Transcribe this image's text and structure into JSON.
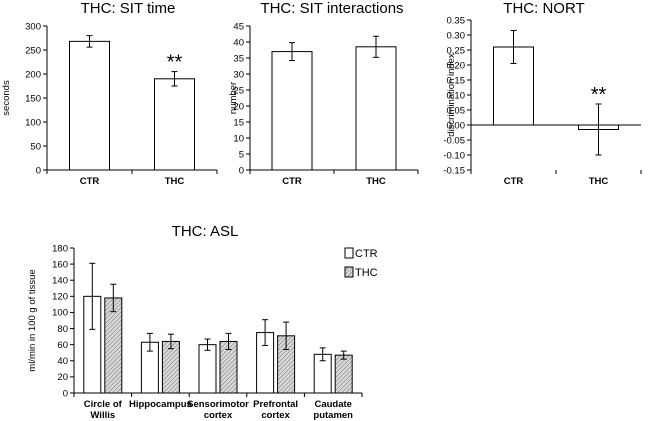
{
  "chart_data": [
    {
      "type": "bar",
      "title": "THC: SIT time",
      "ylabel": "seconds",
      "xlabel": "",
      "categories": [
        "CTR",
        "THC"
      ],
      "values": [
        268,
        190
      ],
      "errors": [
        12,
        15
      ],
      "ylim": [
        0,
        300
      ],
      "yticks": [
        0,
        50,
        100,
        150,
        200,
        250,
        300
      ],
      "significance": [
        "",
        "**"
      ],
      "grid": false
    },
    {
      "type": "bar",
      "title": "THC: SIT interactions",
      "ylabel": "number",
      "xlabel": "",
      "categories": [
        "CTR",
        "THC"
      ],
      "values": [
        37,
        38.5
      ],
      "errors": [
        2.8,
        3.3
      ],
      "ylim": [
        0,
        45
      ],
      "yticks": [
        0,
        5,
        10,
        15,
        20,
        25,
        30,
        35,
        40,
        45
      ],
      "significance": [
        "",
        ""
      ],
      "grid": false
    },
    {
      "type": "bar",
      "title": "THC: NORT",
      "ylabel": "discrimination index",
      "xlabel": "",
      "categories": [
        "CTR",
        "THC"
      ],
      "values": [
        0.26,
        -0.015
      ],
      "errors": [
        0.055,
        0.085
      ],
      "ylim": [
        -0.15,
        0.35
      ],
      "yticks": [
        "-0.15",
        "-0.10",
        "-0.05",
        "0.00",
        "0.05",
        "0.10",
        "0.15",
        "0.20",
        "0.25",
        "0.30",
        "0.35"
      ],
      "significance": [
        "",
        "**"
      ],
      "grid": false
    },
    {
      "type": "bar",
      "title": "THC: ASL",
      "ylabel": "ml/min in 100 g of tissue",
      "xlabel": "",
      "categories": [
        [
          "Circle of",
          "Willis"
        ],
        [
          "Hippocampus"
        ],
        [
          "Sensorimotor",
          "cortex"
        ],
        [
          "Prefrontal",
          "cortex"
        ],
        [
          "Caudate",
          "putamen"
        ]
      ],
      "series": [
        {
          "name": "CTR",
          "values": [
            120,
            63,
            60,
            75,
            48
          ],
          "errors": [
            41,
            11,
            7,
            16,
            8
          ]
        },
        {
          "name": "THC",
          "values": [
            118,
            64,
            64,
            71,
            47
          ],
          "errors": [
            17,
            9,
            10,
            17,
            5
          ]
        }
      ],
      "ylim": [
        0,
        180
      ],
      "yticks": [
        0,
        20,
        40,
        60,
        80,
        100,
        120,
        140,
        160,
        180
      ],
      "legend": "top-right",
      "grid": false
    }
  ]
}
